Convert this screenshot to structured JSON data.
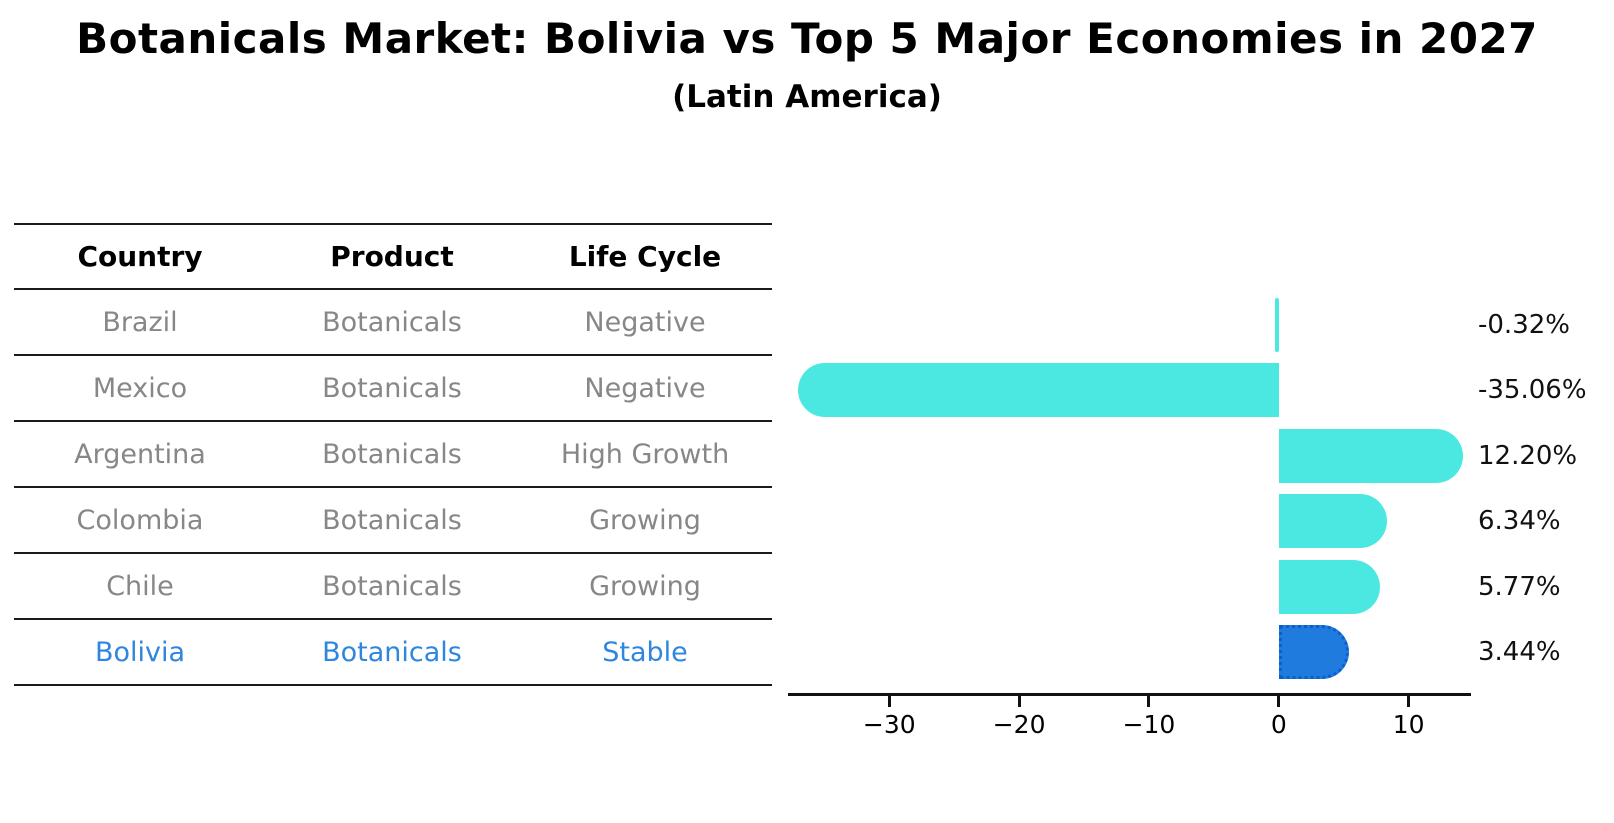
{
  "title": "Botanicals Market: Bolivia vs Top 5 Major Economies in 2027",
  "subtitle": "(Latin America)",
  "table": {
    "headers": [
      "Country",
      "Product",
      "Life Cycle"
    ],
    "rows": [
      {
        "country": "Brazil",
        "product": "Botanicals",
        "life_cycle": "Negative",
        "highlight": false
      },
      {
        "country": "Mexico",
        "product": "Botanicals",
        "life_cycle": "Negative",
        "highlight": false
      },
      {
        "country": "Argentina",
        "product": "Botanicals",
        "life_cycle": "High Growth",
        "highlight": false
      },
      {
        "country": "Colombia",
        "product": "Botanicals",
        "life_cycle": "Growing",
        "highlight": false
      },
      {
        "country": "Chile",
        "product": "Botanicals",
        "life_cycle": "Growing",
        "highlight": false
      },
      {
        "country": "Bolivia",
        "product": "Botanicals",
        "life_cycle": "Stable",
        "highlight": true
      }
    ]
  },
  "chart_data": {
    "type": "bar",
    "orientation": "horizontal",
    "title": "Botanicals Market: Bolivia vs Top 5 Major Economies in 2027",
    "subtitle": "(Latin America)",
    "categories": [
      "Brazil",
      "Mexico",
      "Argentina",
      "Colombia",
      "Chile",
      "Bolivia"
    ],
    "values": [
      -0.32,
      -35.06,
      12.2,
      6.34,
      5.77,
      3.44
    ],
    "value_labels": [
      "-0.32%",
      "-35.06%",
      "12.20%",
      "6.34%",
      "5.77%",
      "3.44%"
    ],
    "x_ticks": [
      -30,
      -20,
      -10,
      0,
      10
    ],
    "x_tick_labels": [
      "−30",
      "−20",
      "−10",
      "0",
      "10"
    ],
    "xlim": [
      -37.8,
      14.8
    ],
    "grid": false,
    "legend": false,
    "highlight_index": 5,
    "bar_color": "#4BE8E2",
    "highlight_bar_color": "#1F7BDE",
    "highlight_border_color": "#0C5FC7"
  },
  "colors": {
    "text": "#000000",
    "muted_text": "#878787",
    "highlight_text": "#2E86DE",
    "line": "#1a1a1a"
  }
}
